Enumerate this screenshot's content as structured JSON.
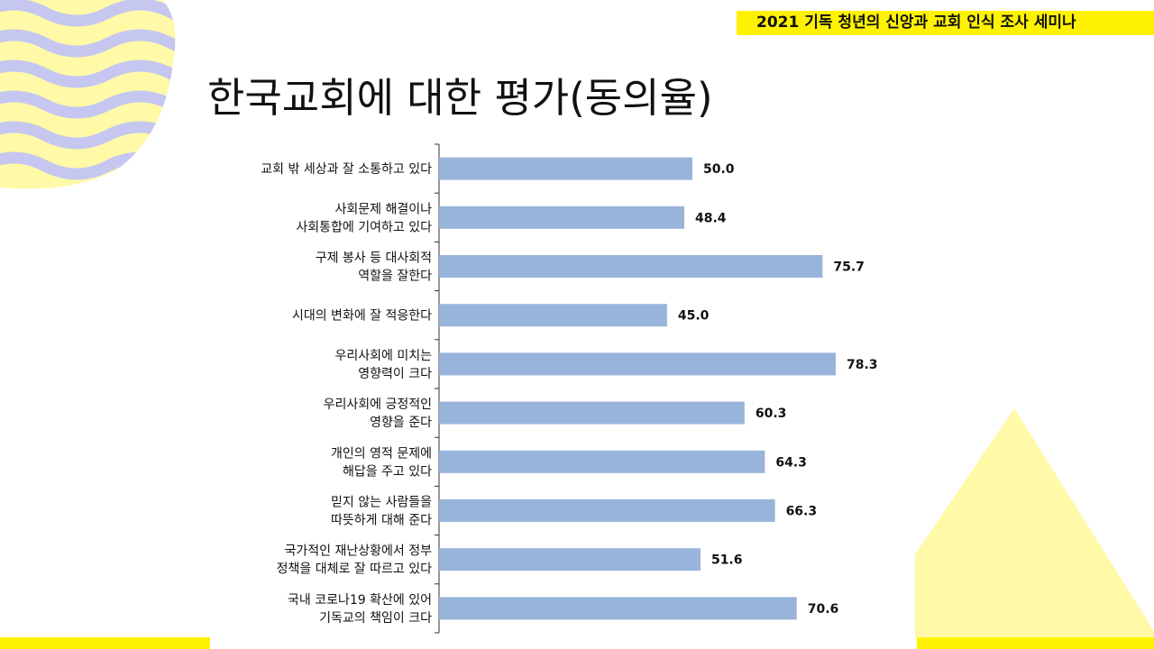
{
  "header": {
    "seminar_label": "2021 기독 청년의 신앙과 교회 인식 조사 세미나"
  },
  "page": {
    "title": "한국교회에 대한 평가(동의율)"
  },
  "colors": {
    "bar": "#98b4da",
    "accent_yellow": "#fff200",
    "light_yellow": "#fff9a8",
    "wave_blue": "#c5c7f0"
  },
  "chart_data": {
    "type": "bar",
    "orientation": "horizontal",
    "categories": [
      [
        "교회 밖 세상과 잘 소통하고 있다"
      ],
      [
        "사회문제 해결이나",
        "사회통합에 기여하고 있다"
      ],
      [
        "구제 봉사 등 대사회적",
        "역할을 잘한다"
      ],
      [
        "시대의 변화에 잘 적응한다"
      ],
      [
        "우리사회에 미치는",
        "영향력이 크다"
      ],
      [
        "우리사회에 긍정적인",
        "영향을 준다"
      ],
      [
        "개인의 영적 문제에",
        "해답을 주고 있다"
      ],
      [
        "믿지 않는 사람들을",
        "따뜻하게 대해 준다"
      ],
      [
        "국가적인 재난상황에서 정부",
        "정책을 대체로 잘 따르고 있다"
      ],
      [
        "국내 코로나19 확산에 있어",
        "기독교의 책임이 크다"
      ]
    ],
    "values": [
      50.0,
      48.4,
      75.7,
      45.0,
      78.3,
      60.3,
      64.3,
      66.3,
      51.6,
      70.6
    ],
    "value_labels": [
      "50.0",
      "48.4",
      "75.7",
      "45.0",
      "78.3",
      "60.3",
      "64.3",
      "66.3",
      "51.6",
      "70.6"
    ],
    "xlim": [
      0,
      100
    ],
    "grid": false,
    "legend": "none"
  }
}
